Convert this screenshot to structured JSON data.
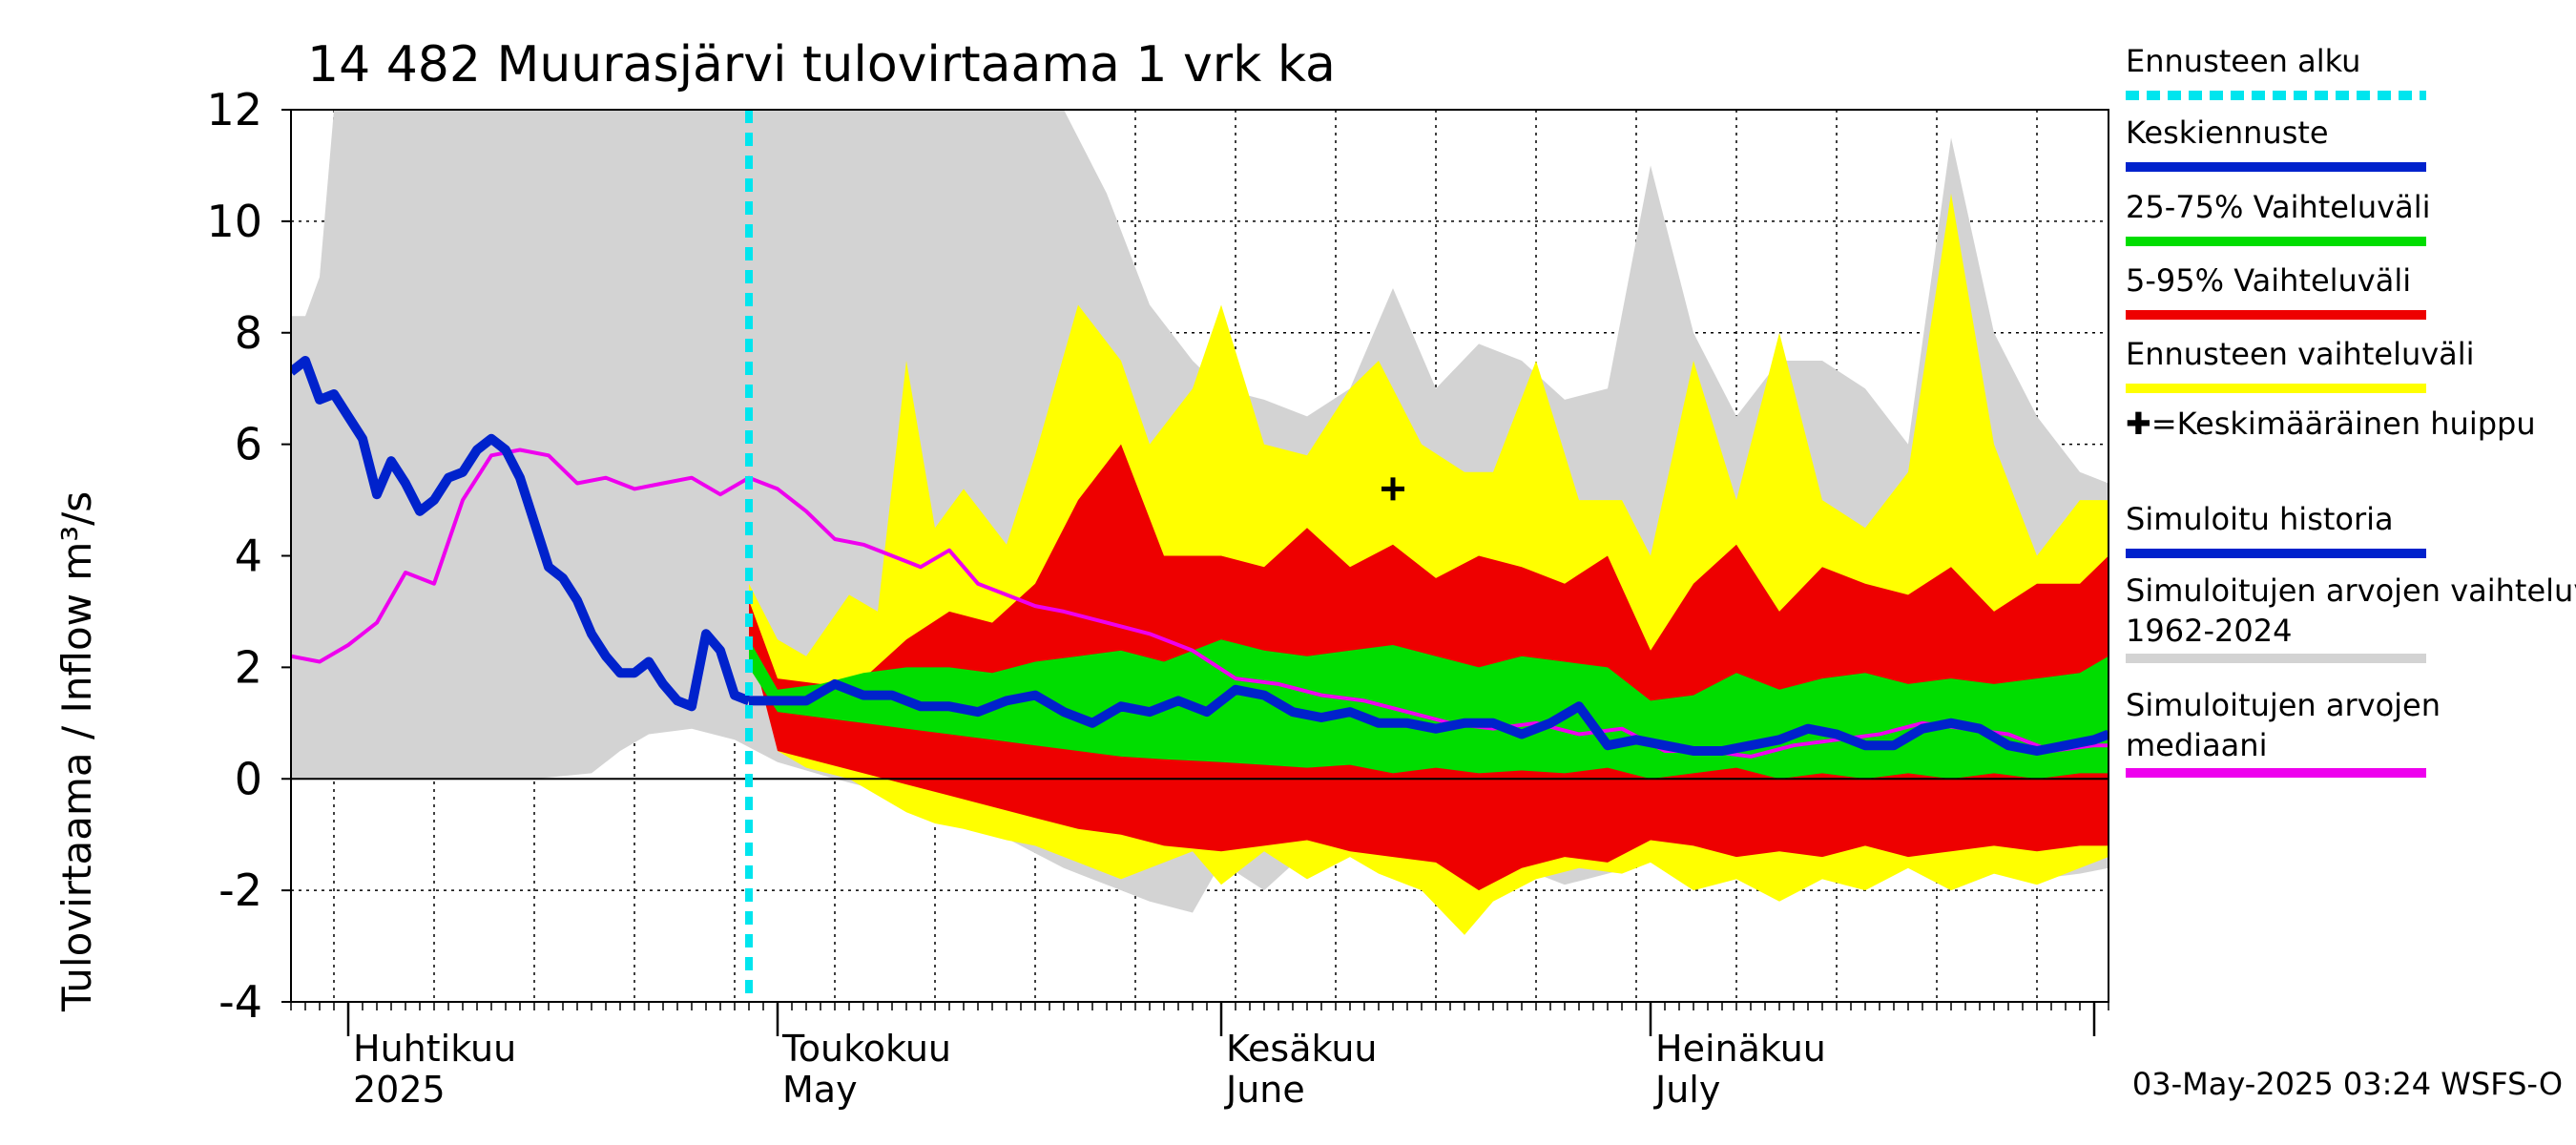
{
  "chart_data": {
    "type": "area",
    "title": "14 482 Muurasjärvi tulovirtaama 1 vrk ka",
    "ylabel": "Tulovirtaama / Inflow    m³/s",
    "ylim": [
      -4,
      12
    ],
    "yticks": [
      -4,
      -2,
      0,
      2,
      4,
      6,
      8,
      10,
      12
    ],
    "x_range": [
      "2025-03-28",
      "2025-08-02"
    ],
    "forecast_start": "2025-04-29",
    "grid": true,
    "legend_position": "right",
    "month_labels": [
      {
        "date": "2025-04-01",
        "line1": "Huhtikuu",
        "line2": "2025"
      },
      {
        "date": "2025-05-01",
        "line1": "Toukokuu",
        "line2": "May"
      },
      {
        "date": "2025-06-01",
        "line1": "Kesäkuu",
        "line2": "June"
      },
      {
        "date": "2025-07-01",
        "line1": "Heinäkuu",
        "line2": "July"
      }
    ],
    "legend": [
      {
        "label": "Ennusteen alku",
        "color": "#00e5ee",
        "style": "dashed"
      },
      {
        "label": "Keskiennuste",
        "color": "#0022cc",
        "style": "solid"
      },
      {
        "label": "25-75% Vaihteluväli",
        "color": "#00dd00",
        "style": "solid"
      },
      {
        "label": "5-95% Vaihteluväli",
        "color": "#ee0000",
        "style": "solid"
      },
      {
        "label": "Ennusteen vaihteluväli",
        "color": "#ffff00",
        "style": "solid"
      },
      {
        "label": "✚=Keskimääräinen huippu",
        "color": null,
        "style": "marker"
      },
      {
        "label": "Simuloitu historia",
        "color": "#0022cc",
        "style": "solid"
      },
      {
        "label": "Simuloitujen arvojen vaihteluväli 1962-2024",
        "color": "#d3d3d3",
        "style": "solid"
      },
      {
        "label": "Simuloitujen arvojen mediaani",
        "color": "#ee00ee",
        "style": "solid"
      }
    ],
    "mean_peak": {
      "x": "2025-06-13",
      "y": 5.2
    },
    "series": [
      {
        "name": "Simuloitujen arvojen vaihteluväli 1962-2024",
        "kind": "band",
        "color": "#d3d3d3",
        "x": [
          "2025-03-28",
          "2025-03-29",
          "2025-03-30",
          "2025-03-31",
          "2025-04-01",
          "2025-04-03",
          "2025-04-05",
          "2025-04-10",
          "2025-04-14",
          "2025-04-18",
          "2025-04-20",
          "2025-04-22",
          "2025-04-25",
          "2025-04-28",
          "2025-05-01",
          "2025-05-05",
          "2025-05-08",
          "2025-05-12",
          "2025-05-15",
          "2025-05-18",
          "2025-05-21",
          "2025-05-24",
          "2025-05-27",
          "2025-05-30",
          "2025-06-01",
          "2025-06-04",
          "2025-06-07",
          "2025-06-10",
          "2025-06-13",
          "2025-06-16",
          "2025-06-19",
          "2025-06-22",
          "2025-06-25",
          "2025-06-28",
          "2025-07-01",
          "2025-07-04",
          "2025-07-07",
          "2025-07-10",
          "2025-07-13",
          "2025-07-16",
          "2025-07-19",
          "2025-07-22",
          "2025-07-25",
          "2025-07-28",
          "2025-07-31",
          "2025-08-02"
        ],
        "upper": [
          8.3,
          8.3,
          9.0,
          12.0,
          12.0,
          12.0,
          12.0,
          12.0,
          12.0,
          12.0,
          12.0,
          12.0,
          12.0,
          12.0,
          12.0,
          12.0,
          12.0,
          12.0,
          12.0,
          12.0,
          12.0,
          10.5,
          8.5,
          7.5,
          7.0,
          6.8,
          6.5,
          7.0,
          8.8,
          7.0,
          7.8,
          7.5,
          6.8,
          7.0,
          11.0,
          8.0,
          6.5,
          7.5,
          7.5,
          7.0,
          6.0,
          11.5,
          8.0,
          6.5,
          5.5,
          5.3
        ],
        "lower": [
          0.0,
          0.0,
          0.0,
          0.0,
          0.0,
          0.0,
          0.0,
          0.0,
          0.0,
          0.1,
          0.5,
          0.8,
          0.9,
          0.7,
          0.3,
          0.0,
          -0.2,
          -0.5,
          -0.8,
          -1.2,
          -1.6,
          -1.9,
          -2.2,
          -2.4,
          -1.5,
          -2.0,
          -1.3,
          -1.1,
          -1.5,
          -1.8,
          -2.2,
          -1.6,
          -1.9,
          -1.7,
          -1.5,
          -1.9,
          -1.4,
          -1.8,
          -1.5,
          -1.9,
          -1.6,
          -2.0,
          -1.7,
          -1.8,
          -1.7,
          -1.6
        ]
      },
      {
        "name": "Ennusteen vaihteluväli",
        "kind": "band",
        "color": "#ffff00",
        "x": [
          "2025-04-29",
          "2025-05-01",
          "2025-05-03",
          "2025-05-06",
          "2025-05-08",
          "2025-05-10",
          "2025-05-12",
          "2025-05-14",
          "2025-05-17",
          "2025-05-19",
          "2025-05-22",
          "2025-05-25",
          "2025-05-27",
          "2025-05-30",
          "2025-06-01",
          "2025-06-04",
          "2025-06-07",
          "2025-06-10",
          "2025-06-12",
          "2025-06-15",
          "2025-06-18",
          "2025-06-20",
          "2025-06-23",
          "2025-06-26",
          "2025-06-29",
          "2025-07-01",
          "2025-07-04",
          "2025-07-07",
          "2025-07-10",
          "2025-07-13",
          "2025-07-16",
          "2025-07-19",
          "2025-07-22",
          "2025-07-25",
          "2025-07-28",
          "2025-07-31",
          "2025-08-02"
        ],
        "upper": [
          3.5,
          2.5,
          2.2,
          3.3,
          3.0,
          7.5,
          4.5,
          5.2,
          4.2,
          5.8,
          8.5,
          7.5,
          6.0,
          7.0,
          8.5,
          6.0,
          5.8,
          7.0,
          7.5,
          6.0,
          5.5,
          5.5,
          7.5,
          5.0,
          5.0,
          4.0,
          7.5,
          5.0,
          8.0,
          5.0,
          4.5,
          5.5,
          10.5,
          6.0,
          4.0,
          5.0,
          5.0
        ],
        "lower": [
          3.0,
          0.5,
          0.2,
          0.0,
          -0.3,
          -0.6,
          -0.8,
          -0.9,
          -1.1,
          -1.2,
          -1.5,
          -1.8,
          -1.6,
          -1.3,
          -1.9,
          -1.3,
          -1.8,
          -1.4,
          -1.7,
          -2.0,
          -2.8,
          -2.2,
          -1.8,
          -1.6,
          -1.7,
          -1.5,
          -2.0,
          -1.8,
          -2.2,
          -1.8,
          -2.0,
          -1.6,
          -2.0,
          -1.7,
          -1.9,
          -1.6,
          -1.4
        ]
      },
      {
        "name": "5-95% Vaihteluväli",
        "kind": "band",
        "color": "#ee0000",
        "x": [
          "2025-04-29",
          "2025-05-01",
          "2025-05-04",
          "2025-05-07",
          "2025-05-10",
          "2025-05-13",
          "2025-05-16",
          "2025-05-19",
          "2025-05-22",
          "2025-05-25",
          "2025-05-28",
          "2025-06-01",
          "2025-06-04",
          "2025-06-07",
          "2025-06-10",
          "2025-06-13",
          "2025-06-16",
          "2025-06-19",
          "2025-06-22",
          "2025-06-25",
          "2025-06-28",
          "2025-07-01",
          "2025-07-04",
          "2025-07-07",
          "2025-07-10",
          "2025-07-13",
          "2025-07-16",
          "2025-07-19",
          "2025-07-22",
          "2025-07-25",
          "2025-07-28",
          "2025-07-31",
          "2025-08-02"
        ],
        "upper": [
          3.2,
          1.8,
          1.7,
          1.8,
          2.5,
          3.0,
          2.8,
          3.5,
          5.0,
          6.0,
          4.0,
          4.0,
          3.8,
          4.5,
          3.8,
          4.2,
          3.6,
          4.0,
          3.8,
          3.5,
          4.0,
          2.3,
          3.5,
          4.2,
          3.0,
          3.8,
          3.5,
          3.3,
          3.8,
          3.0,
          3.5,
          3.5,
          4.0
        ],
        "lower": [
          2.5,
          0.5,
          0.3,
          0.1,
          -0.1,
          -0.3,
          -0.5,
          -0.7,
          -0.9,
          -1.0,
          -1.2,
          -1.3,
          -1.2,
          -1.1,
          -1.3,
          -1.4,
          -1.5,
          -2.0,
          -1.6,
          -1.4,
          -1.5,
          -1.1,
          -1.2,
          -1.4,
          -1.3,
          -1.4,
          -1.2,
          -1.4,
          -1.3,
          -1.2,
          -1.3,
          -1.2,
          -1.2
        ]
      },
      {
        "name": "25-75% Vaihteluväli",
        "kind": "band",
        "color": "#00dd00",
        "x": [
          "2025-04-29",
          "2025-05-01",
          "2025-05-04",
          "2025-05-07",
          "2025-05-10",
          "2025-05-13",
          "2025-05-16",
          "2025-05-19",
          "2025-05-22",
          "2025-05-25",
          "2025-05-28",
          "2025-06-01",
          "2025-06-04",
          "2025-06-07",
          "2025-06-10",
          "2025-06-13",
          "2025-06-16",
          "2025-06-19",
          "2025-06-22",
          "2025-06-25",
          "2025-06-28",
          "2025-07-01",
          "2025-07-04",
          "2025-07-07",
          "2025-07-10",
          "2025-07-13",
          "2025-07-16",
          "2025-07-19",
          "2025-07-22",
          "2025-07-25",
          "2025-07-28",
          "2025-07-31",
          "2025-08-02"
        ],
        "upper": [
          2.5,
          1.6,
          1.7,
          1.9,
          2.0,
          2.0,
          1.9,
          2.1,
          2.2,
          2.3,
          2.1,
          2.5,
          2.3,
          2.2,
          2.3,
          2.4,
          2.2,
          2.0,
          2.2,
          2.1,
          2.0,
          1.4,
          1.5,
          1.9,
          1.6,
          1.8,
          1.9,
          1.7,
          1.8,
          1.7,
          1.8,
          1.9,
          2.2
        ],
        "lower": [
          2.0,
          1.2,
          1.1,
          1.0,
          0.9,
          0.8,
          0.7,
          0.6,
          0.5,
          0.4,
          0.35,
          0.3,
          0.25,
          0.2,
          0.25,
          0.1,
          0.2,
          0.1,
          0.15,
          0.1,
          0.2,
          0.0,
          0.1,
          0.2,
          0.0,
          0.1,
          0.0,
          0.1,
          0.0,
          0.1,
          0.0,
          0.1,
          0.1
        ]
      },
      {
        "name": "Simuloitujen arvojen mediaani",
        "kind": "line",
        "color": "#ee00ee",
        "x": [
          "2025-03-28",
          "2025-03-30",
          "2025-04-01",
          "2025-04-03",
          "2025-04-05",
          "2025-04-07",
          "2025-04-09",
          "2025-04-11",
          "2025-04-13",
          "2025-04-15",
          "2025-04-17",
          "2025-04-19",
          "2025-04-21",
          "2025-04-23",
          "2025-04-25",
          "2025-04-27",
          "2025-04-29",
          "2025-05-01",
          "2025-05-03",
          "2025-05-05",
          "2025-05-07",
          "2025-05-09",
          "2025-05-11",
          "2025-05-13",
          "2025-05-15",
          "2025-05-17",
          "2025-05-19",
          "2025-05-21",
          "2025-05-24",
          "2025-05-27",
          "2025-05-30",
          "2025-06-02",
          "2025-06-05",
          "2025-06-08",
          "2025-06-11",
          "2025-06-14",
          "2025-06-17",
          "2025-06-20",
          "2025-06-23",
          "2025-06-26",
          "2025-06-29",
          "2025-07-02",
          "2025-07-05",
          "2025-07-08",
          "2025-07-11",
          "2025-07-14",
          "2025-07-17",
          "2025-07-20",
          "2025-07-23",
          "2025-07-26",
          "2025-07-29",
          "2025-08-01",
          "2025-08-02"
        ],
        "values": [
          2.2,
          2.1,
          2.4,
          2.8,
          3.7,
          3.5,
          5.0,
          5.8,
          5.9,
          5.8,
          5.3,
          5.4,
          5.2,
          5.3,
          5.4,
          5.1,
          5.4,
          5.2,
          4.8,
          4.3,
          4.2,
          4.0,
          3.8,
          4.1,
          3.5,
          3.3,
          3.1,
          3.0,
          2.8,
          2.6,
          2.3,
          1.8,
          1.7,
          1.5,
          1.4,
          1.2,
          1.0,
          0.9,
          1.0,
          0.8,
          0.9,
          0.5,
          0.5,
          0.4,
          0.6,
          0.7,
          0.8,
          1.0,
          0.9,
          0.8,
          0.5,
          0.6,
          0.6
        ]
      },
      {
        "name": "Simuloitu historia",
        "kind": "line",
        "color": "#0022cc",
        "x": [
          "2025-03-28",
          "2025-03-29",
          "2025-03-30",
          "2025-03-31",
          "2025-04-01",
          "2025-04-02",
          "2025-04-03",
          "2025-04-04",
          "2025-04-05",
          "2025-04-06",
          "2025-04-07",
          "2025-04-08",
          "2025-04-09",
          "2025-04-10",
          "2025-04-11",
          "2025-04-12",
          "2025-04-13",
          "2025-04-14",
          "2025-04-15",
          "2025-04-16",
          "2025-04-17",
          "2025-04-18",
          "2025-04-19",
          "2025-04-20",
          "2025-04-21",
          "2025-04-22",
          "2025-04-23",
          "2025-04-24",
          "2025-04-25",
          "2025-04-26",
          "2025-04-27",
          "2025-04-28",
          "2025-04-29"
        ],
        "values": [
          7.3,
          7.5,
          6.8,
          6.9,
          6.5,
          6.1,
          5.1,
          5.7,
          5.3,
          4.8,
          5.0,
          5.4,
          5.5,
          5.9,
          6.1,
          5.9,
          5.4,
          4.6,
          3.8,
          3.6,
          3.2,
          2.6,
          2.2,
          1.9,
          1.9,
          2.1,
          1.7,
          1.4,
          1.3,
          2.6,
          2.3,
          1.5,
          1.4
        ]
      },
      {
        "name": "Keskiennuste",
        "kind": "line",
        "color": "#0022cc",
        "x": [
          "2025-04-29",
          "2025-05-01",
          "2025-05-03",
          "2025-05-05",
          "2025-05-07",
          "2025-05-09",
          "2025-05-11",
          "2025-05-13",
          "2025-05-15",
          "2025-05-17",
          "2025-05-19",
          "2025-05-21",
          "2025-05-23",
          "2025-05-25",
          "2025-05-27",
          "2025-05-29",
          "2025-05-31",
          "2025-06-02",
          "2025-06-04",
          "2025-06-06",
          "2025-06-08",
          "2025-06-10",
          "2025-06-12",
          "2025-06-14",
          "2025-06-16",
          "2025-06-18",
          "2025-06-20",
          "2025-06-22",
          "2025-06-24",
          "2025-06-26",
          "2025-06-28",
          "2025-06-30",
          "2025-07-02",
          "2025-07-04",
          "2025-07-06",
          "2025-07-08",
          "2025-07-10",
          "2025-07-12",
          "2025-07-14",
          "2025-07-16",
          "2025-07-18",
          "2025-07-20",
          "2025-07-22",
          "2025-07-24",
          "2025-07-26",
          "2025-07-28",
          "2025-07-30",
          "2025-08-01",
          "2025-08-02"
        ],
        "values": [
          1.4,
          1.4,
          1.4,
          1.7,
          1.5,
          1.5,
          1.3,
          1.3,
          1.2,
          1.4,
          1.5,
          1.2,
          1.0,
          1.3,
          1.2,
          1.4,
          1.2,
          1.6,
          1.5,
          1.2,
          1.1,
          1.2,
          1.0,
          1.0,
          0.9,
          1.0,
          1.0,
          0.8,
          1.0,
          1.3,
          0.6,
          0.7,
          0.6,
          0.5,
          0.5,
          0.6,
          0.7,
          0.9,
          0.8,
          0.6,
          0.6,
          0.9,
          1.0,
          0.9,
          0.6,
          0.5,
          0.6,
          0.7,
          0.8
        ]
      }
    ],
    "footer": "03-May-2025 03:24 WSFS-O"
  }
}
